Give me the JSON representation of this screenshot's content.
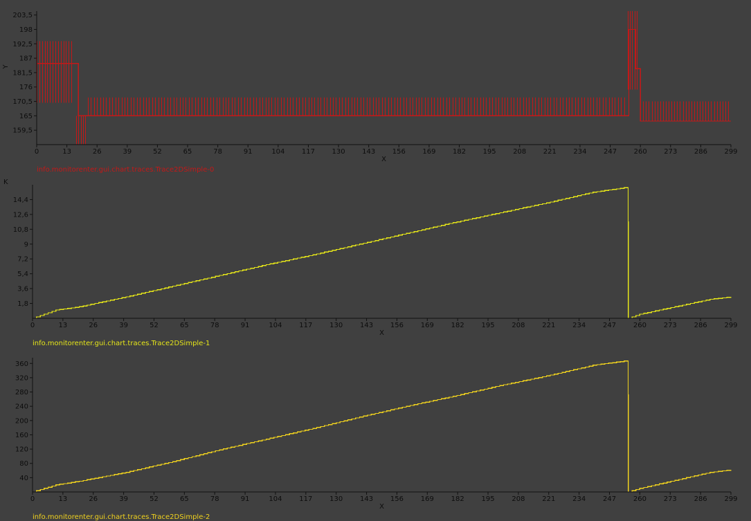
{
  "chart_data": [
    {
      "type": "line",
      "legend": "info.monitorenter.gui.chart.traces.Trace2DSimple-0",
      "xlabel": "X",
      "ylabel": "Y",
      "unit": "",
      "color": "#c41818",
      "xlim": [
        0,
        299
      ],
      "ylim": [
        154,
        205
      ],
      "xticks": [
        "0",
        "13",
        "26",
        "39",
        "52",
        "65",
        "78",
        "91",
        "104",
        "117",
        "130",
        "143",
        "156",
        "169",
        "182",
        "195",
        "208",
        "221",
        "234",
        "247",
        "260",
        "273",
        "286",
        "299"
      ],
      "yticks": [
        {
          "v": 159.5,
          "label": "159,5"
        },
        {
          "v": 165,
          "label": "165"
        },
        {
          "v": 170.5,
          "label": "170,5"
        },
        {
          "v": 176,
          "label": "176"
        },
        {
          "v": 181.5,
          "label": "181,5"
        },
        {
          "v": 187,
          "label": "187"
        },
        {
          "v": 192.5,
          "label": "192,5"
        },
        {
          "v": 198,
          "label": "198"
        },
        {
          "v": 203.5,
          "label": "203,5"
        }
      ],
      "series": [
        {
          "style": "spiky",
          "x": [
            0,
            17,
            18,
            21,
            22,
            254,
            255,
            257,
            258,
            259,
            260,
            299
          ],
          "y": [
            185,
            185,
            165,
            165,
            165,
            165,
            198,
            198,
            183,
            183,
            163,
            163
          ],
          "spikes": [
            {
              "x": [
                0,
                16
              ],
              "step": 1.15,
              "lo": 170,
              "hi": 193.5
            },
            {
              "x": [
                17,
                21
              ],
              "step": 1.0,
              "lo": 154,
              "hi": 165
            },
            {
              "x": [
                22,
                254
              ],
              "step": 1.32,
              "lo": 165,
              "hi": 172
            },
            {
              "x": [
                254.5,
                258.5
              ],
              "step": 1.0,
              "lo": 175,
              "hi": 205
            },
            {
              "x": [
                260,
                299
              ],
              "step": 1.22,
              "lo": 163,
              "hi": 170.5
            }
          ]
        }
      ]
    },
    {
      "type": "line",
      "legend": "info.monitorenter.gui.chart.traces.Trace2DSimple-1",
      "xlabel": "X",
      "ylabel": "",
      "unit": "K",
      "color": "#e6e619",
      "xlim": [
        0,
        299
      ],
      "ylim": [
        0,
        16.2
      ],
      "xticks": [
        "0",
        "13",
        "26",
        "39",
        "52",
        "65",
        "78",
        "91",
        "104",
        "117",
        "130",
        "143",
        "156",
        "169",
        "182",
        "195",
        "208",
        "221",
        "234",
        "247",
        "260",
        "273",
        "286",
        "299"
      ],
      "yticks": [
        {
          "v": 1.8,
          "label": "1,8"
        },
        {
          "v": 3.6,
          "label": "3,6"
        },
        {
          "v": 5.4,
          "label": "5,4"
        },
        {
          "v": 7.2,
          "label": "7,2"
        },
        {
          "v": 9,
          "label": "9"
        },
        {
          "v": 10.8,
          "label": "10,8"
        },
        {
          "v": 12.6,
          "label": "12,6"
        },
        {
          "v": 14.4,
          "label": "14,4"
        }
      ],
      "series": [
        {
          "style": "step",
          "x": [
            0,
            5,
            10,
            20,
            40,
            60,
            80,
            100,
            120,
            140,
            160,
            180,
            200,
            220,
            240,
            255,
            255.1,
            260,
            270,
            280,
            290,
            299
          ],
          "y": [
            0,
            0.5,
            1.0,
            1.4,
            2.6,
            3.9,
            5.2,
            6.5,
            7.7,
            9.0,
            10.3,
            11.6,
            12.8,
            14.0,
            15.3,
            15.9,
            0,
            0.5,
            1.1,
            1.7,
            2.3,
            2.6
          ]
        }
      ]
    },
    {
      "type": "line",
      "legend": "info.monitorenter.gui.chart.traces.Trace2DSimple-2",
      "xlabel": "X",
      "ylabel": "",
      "unit": "",
      "color": "#f0d21e",
      "xlim": [
        0,
        299
      ],
      "ylim": [
        0,
        376
      ],
      "xticks": [
        "0",
        "13",
        "26",
        "39",
        "52",
        "65",
        "78",
        "91",
        "104",
        "117",
        "130",
        "143",
        "156",
        "169",
        "182",
        "195",
        "208",
        "221",
        "234",
        "247",
        "260",
        "273",
        "286",
        "299"
      ],
      "yticks": [
        {
          "v": 40,
          "label": "40"
        },
        {
          "v": 80,
          "label": "80"
        },
        {
          "v": 120,
          "label": "120"
        },
        {
          "v": 160,
          "label": "160"
        },
        {
          "v": 200,
          "label": "200"
        },
        {
          "v": 240,
          "label": "240"
        },
        {
          "v": 280,
          "label": "280"
        },
        {
          "v": 320,
          "label": "320"
        },
        {
          "v": 360,
          "label": "360"
        }
      ],
      "series": [
        {
          "style": "step",
          "x": [
            0,
            5,
            10,
            20,
            40,
            60,
            80,
            100,
            120,
            140,
            160,
            180,
            200,
            220,
            240,
            255,
            255.1,
            260,
            270,
            280,
            290,
            299
          ],
          "y": [
            0,
            10,
            20,
            30,
            55,
            85,
            118,
            148,
            178,
            210,
            240,
            268,
            298,
            325,
            355,
            368,
            0,
            10,
            25,
            40,
            55,
            62
          ]
        }
      ]
    }
  ]
}
